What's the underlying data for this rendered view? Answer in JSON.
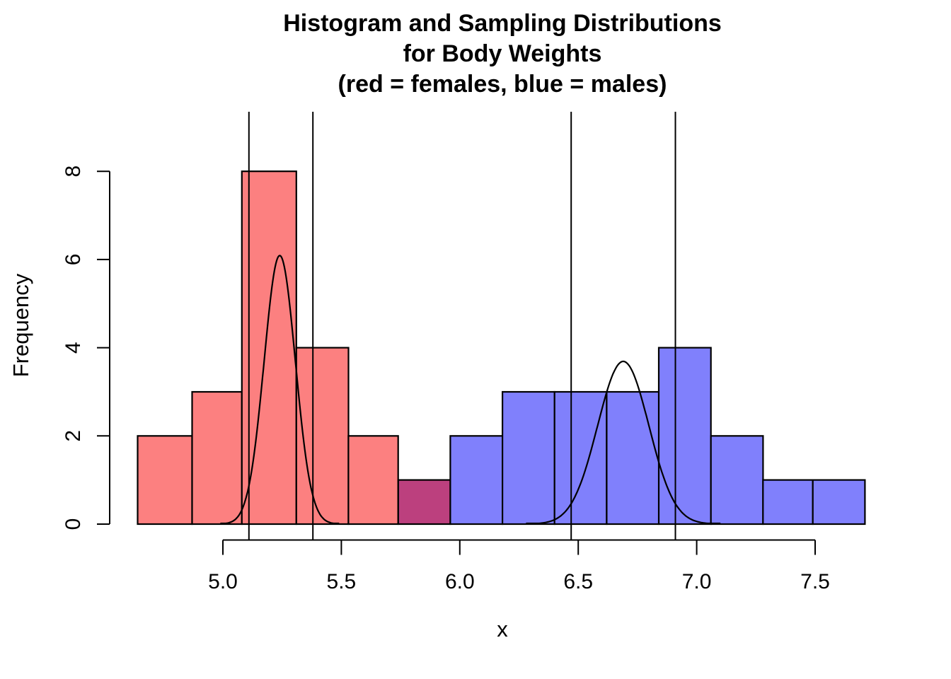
{
  "title": {
    "line1": "Histogram and Sampling Distributions",
    "line2": "for Body Weights",
    "line3": "(red = females, blue = males)"
  },
  "chart_data": {
    "type": "bar",
    "subtype": "overlaid-histograms-with-sampling-distributions",
    "title": "Histogram and Sampling Distributions for Body Weights (red = females, blue = males)",
    "xlabel": "x",
    "ylabel": "Frequency",
    "x_tick_labels": [
      "5.0",
      "5.5",
      "6.0",
      "6.5",
      "7.0",
      "7.5"
    ],
    "x_tick_values": [
      5.0,
      5.5,
      6.0,
      6.5,
      7.0,
      7.5
    ],
    "y_tick_labels": [
      "0",
      "2",
      "4",
      "6",
      "8"
    ],
    "y_tick_values": [
      0,
      2,
      4,
      6,
      8
    ],
    "xlim": [
      4.52,
      7.84
    ],
    "ylim": [
      0,
      9.36
    ],
    "grid": false,
    "legend": "encoded in title: red = females, blue = males",
    "bin_edges": [
      4.64,
      4.87,
      5.08,
      5.31,
      5.53,
      5.74,
      5.96,
      6.18,
      6.4,
      6.62,
      6.84,
      7.06,
      7.28,
      7.49,
      7.71
    ],
    "bin_counts": [
      2,
      3,
      8,
      4,
      2,
      1,
      2,
      3,
      3,
      3,
      4,
      2,
      1,
      1
    ],
    "bin_groups": [
      "females",
      "females",
      "females",
      "females",
      "females",
      "overlap",
      "males",
      "males",
      "males",
      "males",
      "males",
      "males",
      "males",
      "males"
    ],
    "groups": {
      "females": {
        "color": "#FC8080"
      },
      "males": {
        "color": "#8080FC"
      },
      "overlap": {
        "color": "#BC407E"
      }
    },
    "curves": [
      {
        "group": "females",
        "mean": 5.24,
        "se": 0.066,
        "peak_frequency": 6.09
      },
      {
        "group": "males",
        "mean": 6.69,
        "se": 0.108,
        "peak_frequency": 3.69
      }
    ],
    "ci_lines": [
      {
        "group": "females",
        "x": 5.11
      },
      {
        "group": "females",
        "x": 5.38
      },
      {
        "group": "males",
        "x": 6.47
      },
      {
        "group": "males",
        "x": 6.91
      }
    ],
    "line_color": "#000000"
  }
}
